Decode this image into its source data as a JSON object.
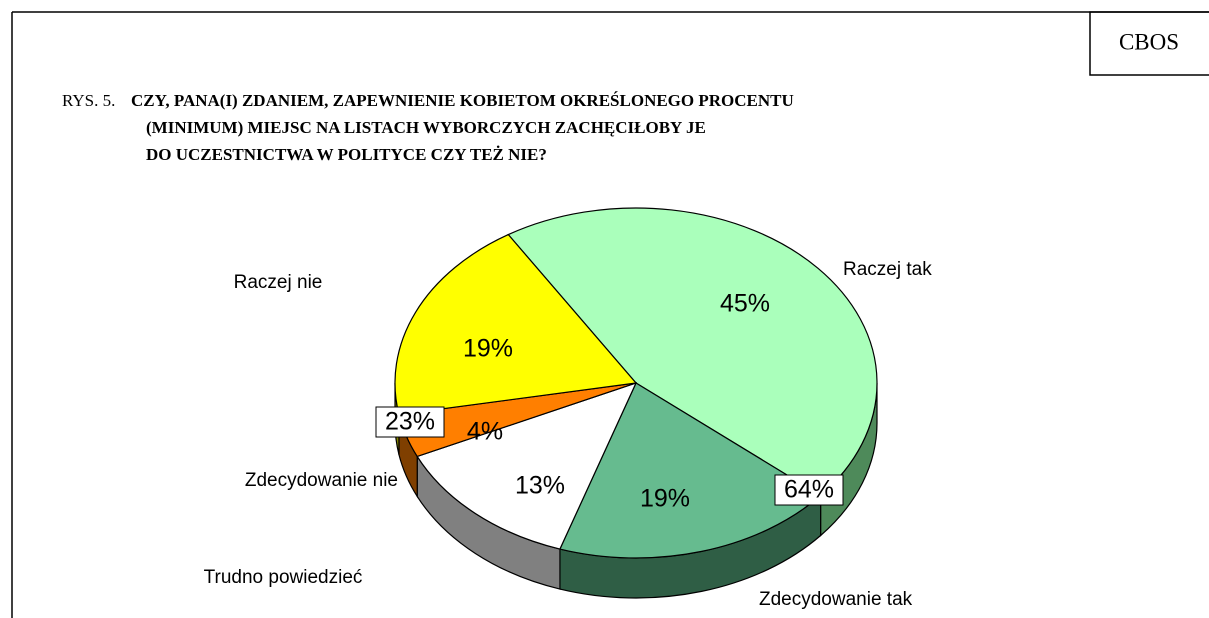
{
  "chart_data": {
    "type": "pie",
    "source": "CBOS",
    "figure_label": "RYS. 5.",
    "title": [
      "CZY, PANA(I) ZDANIEM, ZAPEWNIENIE KOBIETOM OKREŚLONEGO PROCENTU",
      "(MINIMUM) MIEJSC NA LISTACH WYBORCZYCH ZACHĘCIŁOBY JE",
      "DO UCZESTNICTWA W POLITYCE CZY TEŻ NIE?"
    ],
    "categories": [
      "Raczej tak",
      "Zdecydowanie tak",
      "Trudno powiedzieć",
      "Zdecydowanie nie",
      "Raczej  nie"
    ],
    "values": [
      45,
      19,
      13,
      4,
      19
    ],
    "value_labels": [
      "45%",
      "19%",
      "13%",
      "4%",
      "19%"
    ],
    "colors": [
      "#aaffbb",
      "#66bb8f",
      "#ffffff",
      "#ff7f00",
      "#ffff00"
    ],
    "annotations": [
      {
        "value": 64,
        "label": "64%"
      },
      {
        "value": 23,
        "label": "23%"
      }
    ]
  }
}
